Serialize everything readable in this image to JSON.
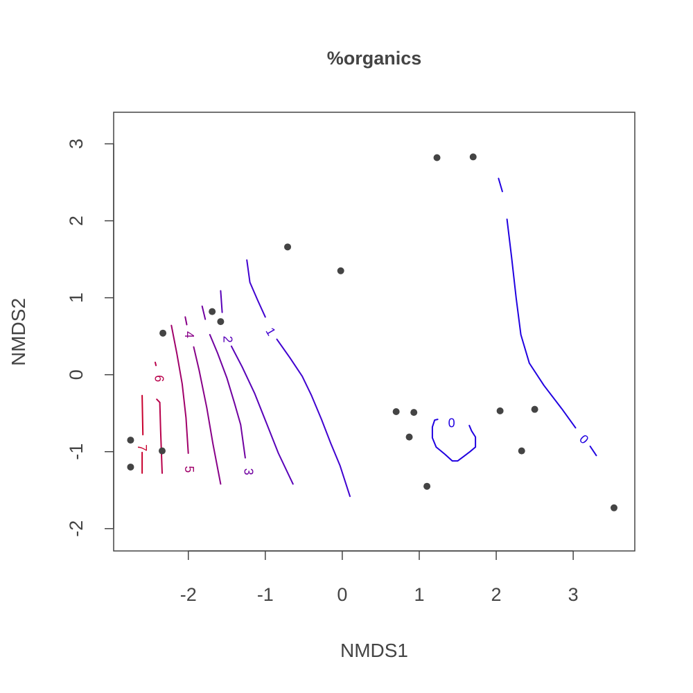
{
  "chart_data": {
    "type": "scatter",
    "title": "%organics",
    "xlabel": "NMDS1",
    "ylabel": "NMDS2",
    "xlim": [
      -2.97,
      3.8
    ],
    "ylim": [
      -2.29,
      3.41
    ],
    "xticks": [
      -2,
      -1,
      0,
      1,
      2,
      3
    ],
    "yticks": [
      -2,
      -1,
      0,
      1,
      2,
      3
    ],
    "xtick_labels": [
      "-2",
      "-1",
      "0",
      "1",
      "2",
      "3"
    ],
    "ytick_labels": [
      "-2",
      "-1",
      "0",
      "1",
      "2",
      "3"
    ],
    "grid": false,
    "point_color": "#444444",
    "points": [
      {
        "x": 1.23,
        "y": 2.82
      },
      {
        "x": 1.7,
        "y": 2.83
      },
      {
        "x": -0.71,
        "y": 1.66
      },
      {
        "x": -0.02,
        "y": 1.35
      },
      {
        "x": -1.69,
        "y": 0.82
      },
      {
        "x": -1.58,
        "y": 0.69
      },
      {
        "x": -2.33,
        "y": 0.54
      },
      {
        "x": -2.75,
        "y": -0.85
      },
      {
        "x": -2.34,
        "y": -0.99
      },
      {
        "x": -2.75,
        "y": -1.2
      },
      {
        "x": 0.7,
        "y": -0.48
      },
      {
        "x": 0.93,
        "y": -0.49
      },
      {
        "x": 0.87,
        "y": -0.81
      },
      {
        "x": 1.1,
        "y": -1.45
      },
      {
        "x": 2.05,
        "y": -0.47
      },
      {
        "x": 2.5,
        "y": -0.45
      },
      {
        "x": 2.33,
        "y": -0.99
      },
      {
        "x": 3.53,
        "y": -1.73
      }
    ],
    "contours": [
      {
        "level": "7",
        "color": "#c8002e",
        "segments": [
          [
            [
              -2.6,
              -0.27
            ],
            [
              -2.59,
              -0.78
            ]
          ],
          [
            [
              -2.6,
              -1.01
            ],
            [
              -2.6,
              -1.28
            ]
          ]
        ],
        "label_at": [
          -2.6,
          -0.95
        ],
        "label_rotation": 90
      },
      {
        "level": "6",
        "color": "#b8004a",
        "segments": [
          [
            [
              -2.41,
              -0.32
            ],
            [
              -2.37,
              -0.36
            ],
            [
              -2.36,
              -0.73
            ],
            [
              -2.34,
              -1.28
            ]
          ],
          [
            [
              -2.43,
              0.16
            ],
            [
              -2.42,
              0.12
            ]
          ]
        ],
        "label_at": [
          -2.38,
          -0.05
        ],
        "label_rotation": 90
      },
      {
        "level": "5",
        "color": "#a0006a",
        "segments": [
          [
            [
              -2.22,
              0.64
            ],
            [
              -2.15,
              0.28
            ],
            [
              -2.08,
              -0.12
            ],
            [
              -2.03,
              -0.56
            ],
            [
              -2.0,
              -1.02
            ]
          ]
        ],
        "label_at": [
          -1.99,
          -1.23
        ],
        "label_rotation": 90
      },
      {
        "level": "4",
        "color": "#880088",
        "segments": [
          [
            [
              -2.04,
              0.75
            ],
            [
              -2.02,
              0.65
            ]
          ],
          [
            [
              -1.93,
              0.36
            ],
            [
              -1.86,
              0.06
            ],
            [
              -1.76,
              -0.43
            ],
            [
              -1.68,
              -0.9
            ],
            [
              -1.58,
              -1.42
            ]
          ]
        ],
        "label_at": [
          -1.99,
          0.52
        ],
        "label_rotation": 90
      },
      {
        "level": "3",
        "color": "#7000a0",
        "segments": [
          [
            [
              -1.82,
              0.89
            ],
            [
              -1.78,
              0.72
            ]
          ],
          [
            [
              -1.72,
              0.52
            ],
            [
              -1.62,
              0.28
            ],
            [
              -1.5,
              -0.04
            ],
            [
              -1.4,
              -0.37
            ],
            [
              -1.32,
              -0.65
            ],
            [
              -1.26,
              -1.08
            ]
          ]
        ],
        "label_at": [
          -1.22,
          -1.26
        ],
        "label_rotation": 90
      },
      {
        "level": "2",
        "color": "#5800b8",
        "segments": [
          [
            [
              -1.58,
              1.09
            ],
            [
              -1.56,
              0.81
            ]
          ],
          [
            [
              -1.44,
              0.37
            ],
            [
              -1.3,
              0.1
            ],
            [
              -1.14,
              -0.24
            ],
            [
              -0.98,
              -0.64
            ],
            [
              -0.83,
              -1.02
            ],
            [
              -0.64,
              -1.42
            ]
          ]
        ],
        "label_at": [
          -1.49,
          0.46
        ],
        "label_rotation": 90
      },
      {
        "level": "1",
        "color": "#4000d0",
        "segments": [
          [
            [
              -1.24,
              1.49
            ],
            [
              -1.2,
              1.2
            ],
            [
              -1.1,
              0.97
            ],
            [
              -1.0,
              0.75
            ]
          ],
          [
            [
              -0.85,
              0.46
            ],
            [
              -0.68,
              0.22
            ],
            [
              -0.52,
              -0.02
            ],
            [
              -0.4,
              -0.27
            ],
            [
              -0.27,
              -0.58
            ],
            [
              -0.15,
              -0.89
            ],
            [
              -0.03,
              -1.18
            ],
            [
              0.1,
              -1.58
            ]
          ]
        ],
        "label_at": [
          -0.93,
          0.56
        ],
        "label_rotation": 60
      },
      {
        "level": "0",
        "color": "#2000e0",
        "segments": [
          [
            [
              2.03,
              2.55
            ],
            [
              2.08,
              2.38
            ]
          ],
          [
            [
              2.14,
              2.02
            ],
            [
              2.2,
              1.52
            ],
            [
              2.26,
              0.99
            ],
            [
              2.32,
              0.52
            ],
            [
              2.43,
              0.15
            ],
            [
              2.62,
              -0.14
            ],
            [
              2.85,
              -0.44
            ],
            [
              3.03,
              -0.69
            ]
          ],
          [
            [
              3.22,
              -0.93
            ],
            [
              3.3,
              -1.05
            ]
          ]
        ],
        "label_at": [
          3.14,
          -0.84
        ],
        "label_rotation": 45
      },
      {
        "level": "0",
        "color": "#2000e0",
        "segments": [
          [
            [
              1.24,
              -0.58
            ],
            [
              1.2,
              -0.59
            ],
            [
              1.17,
              -0.68
            ],
            [
              1.17,
              -0.82
            ],
            [
              1.22,
              -0.94
            ],
            [
              1.33,
              -1.03
            ],
            [
              1.43,
              -1.12
            ],
            [
              1.5,
              -1.12
            ],
            [
              1.58,
              -1.06
            ],
            [
              1.66,
              -1.0
            ],
            [
              1.73,
              -0.94
            ],
            [
              1.73,
              -0.81
            ],
            [
              1.68,
              -0.73
            ],
            [
              1.65,
              -0.66
            ]
          ]
        ],
        "label_at": [
          1.42,
          -0.63
        ],
        "label_rotation": 0
      }
    ]
  }
}
